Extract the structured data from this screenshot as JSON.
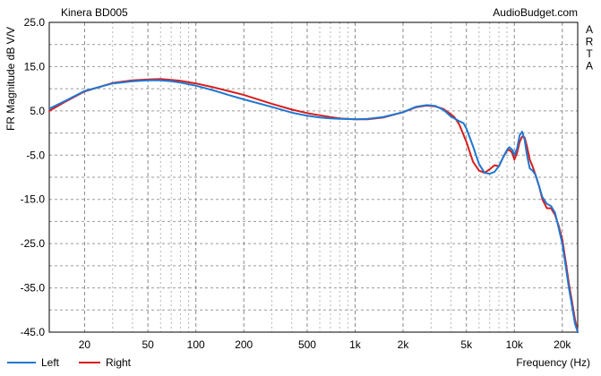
{
  "chart_data": {
    "type": "line",
    "title": "Kinera BD005",
    "watermark": "AudioBudget.com",
    "side_label": "ARTA",
    "xlabel": "Frequency (Hz)",
    "ylabel": "FR Magnitude dB V/V",
    "x_scale": "log",
    "xlim": [
      12,
      25000
    ],
    "ylim": [
      -45.0,
      25.0
    ],
    "grid": true,
    "legend_position": "bottom-left",
    "y_ticks": [
      "25.0",
      "15.0",
      "5.0",
      "-5.0",
      "-15.0",
      "-25.0",
      "-35.0",
      "-45.0"
    ],
    "y_tick_values": [
      25,
      15,
      5,
      -5,
      -15,
      -25,
      -35,
      -45
    ],
    "x_ticks": [
      {
        "value": 20,
        "label": "20"
      },
      {
        "value": 50,
        "label": "50"
      },
      {
        "value": 100,
        "label": "100"
      },
      {
        "value": 200,
        "label": "200"
      },
      {
        "value": 500,
        "label": "500"
      },
      {
        "value": 1000,
        "label": "1k"
      },
      {
        "value": 2000,
        "label": "2k"
      },
      {
        "value": 5000,
        "label": "5k"
      },
      {
        "value": 10000,
        "label": "10k"
      },
      {
        "value": 20000,
        "label": "20k"
      }
    ],
    "series": [
      {
        "name": "Left",
        "color": "#1f78d2",
        "points": [
          [
            12,
            5.5
          ],
          [
            15,
            7.2
          ],
          [
            20,
            9.5
          ],
          [
            30,
            11.2
          ],
          [
            40,
            11.7
          ],
          [
            50,
            11.9
          ],
          [
            60,
            11.9
          ],
          [
            70,
            11.7
          ],
          [
            80,
            11.4
          ],
          [
            100,
            10.7
          ],
          [
            130,
            9.6
          ],
          [
            160,
            8.6
          ],
          [
            200,
            7.6
          ],
          [
            300,
            5.9
          ],
          [
            400,
            4.6
          ],
          [
            500,
            3.9
          ],
          [
            600,
            3.5
          ],
          [
            700,
            3.3
          ],
          [
            800,
            3.2
          ],
          [
            1000,
            3.1
          ],
          [
            1200,
            3.2
          ],
          [
            1500,
            3.6
          ],
          [
            2000,
            4.7
          ],
          [
            2400,
            5.9
          ],
          [
            2800,
            6.3
          ],
          [
            3200,
            6.1
          ],
          [
            3600,
            5.2
          ],
          [
            4000,
            3.7
          ],
          [
            4500,
            2.7
          ],
          [
            4800,
            2.2
          ],
          [
            5000,
            1.0
          ],
          [
            5500,
            -3.0
          ],
          [
            6000,
            -7.0
          ],
          [
            6500,
            -9.0
          ],
          [
            7000,
            -9.2
          ],
          [
            7500,
            -8.8
          ],
          [
            8000,
            -7.5
          ],
          [
            8500,
            -5.5
          ],
          [
            9000,
            -3.8
          ],
          [
            9300,
            -3.2
          ],
          [
            9700,
            -3.8
          ],
          [
            10000,
            -5.0
          ],
          [
            10400,
            -3.5
          ],
          [
            10800,
            -0.5
          ],
          [
            11200,
            0.3
          ],
          [
            11600,
            -1.5
          ],
          [
            12000,
            -5.0
          ],
          [
            12500,
            -8.0
          ],
          [
            13000,
            -8.5
          ],
          [
            13600,
            -9.5
          ],
          [
            14300,
            -12.0
          ],
          [
            15000,
            -14.5
          ],
          [
            16000,
            -16.0
          ],
          [
            17000,
            -16.5
          ],
          [
            18000,
            -18.0
          ],
          [
            19000,
            -21.5
          ],
          [
            20000,
            -25.0
          ],
          [
            21000,
            -30.0
          ],
          [
            22000,
            -35.0
          ],
          [
            23000,
            -39.0
          ],
          [
            24000,
            -43.0
          ],
          [
            25000,
            -45.0
          ]
        ]
      },
      {
        "name": "Right",
        "color": "#d81e1e",
        "points": [
          [
            12,
            5.0
          ],
          [
            15,
            7.0
          ],
          [
            20,
            9.4
          ],
          [
            30,
            11.3
          ],
          [
            40,
            11.9
          ],
          [
            50,
            12.1
          ],
          [
            60,
            12.2
          ],
          [
            70,
            12.0
          ],
          [
            80,
            11.8
          ],
          [
            100,
            11.2
          ],
          [
            130,
            10.3
          ],
          [
            160,
            9.5
          ],
          [
            200,
            8.6
          ],
          [
            300,
            6.6
          ],
          [
            400,
            5.3
          ],
          [
            500,
            4.5
          ],
          [
            600,
            4.0
          ],
          [
            700,
            3.6
          ],
          [
            800,
            3.3
          ],
          [
            1000,
            3.1
          ],
          [
            1200,
            3.1
          ],
          [
            1500,
            3.5
          ],
          [
            2000,
            4.7
          ],
          [
            2400,
            5.8
          ],
          [
            2800,
            6.2
          ],
          [
            3200,
            6.0
          ],
          [
            3600,
            5.4
          ],
          [
            4000,
            4.2
          ],
          [
            4200,
            3.6
          ],
          [
            4500,
            2.0
          ],
          [
            5000,
            -2.0
          ],
          [
            5500,
            -6.5
          ],
          [
            6000,
            -8.5
          ],
          [
            6500,
            -9.0
          ],
          [
            7000,
            -8.2
          ],
          [
            7500,
            -7.3
          ],
          [
            8000,
            -7.5
          ],
          [
            8500,
            -5.5
          ],
          [
            9000,
            -4.0
          ],
          [
            9300,
            -3.8
          ],
          [
            9700,
            -4.5
          ],
          [
            10000,
            -6.0
          ],
          [
            10400,
            -4.5
          ],
          [
            10800,
            -2.0
          ],
          [
            11200,
            -0.8
          ],
          [
            11600,
            -1.0
          ],
          [
            12000,
            -3.0
          ],
          [
            12500,
            -6.0
          ],
          [
            13000,
            -7.5
          ],
          [
            13600,
            -9.5
          ],
          [
            14300,
            -12.0
          ],
          [
            15000,
            -15.0
          ],
          [
            16000,
            -17.0
          ],
          [
            17000,
            -17.0
          ],
          [
            18000,
            -18.5
          ],
          [
            19000,
            -21.0
          ],
          [
            20000,
            -24.0
          ],
          [
            21000,
            -29.0
          ],
          [
            22000,
            -34.0
          ],
          [
            23000,
            -38.0
          ],
          [
            24000,
            -42.0
          ],
          [
            25000,
            -45.0
          ]
        ]
      }
    ]
  }
}
